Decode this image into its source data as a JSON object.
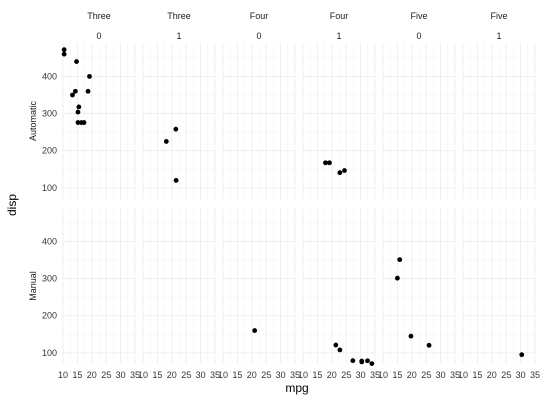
{
  "chart_data": {
    "type": "scatter",
    "xlabel": "mpg",
    "ylabel": "disp",
    "xlim": [
      10,
      35
    ],
    "ylim": [
      70,
      490
    ],
    "x_ticks": [
      10,
      15,
      20,
      25,
      30,
      35
    ],
    "y_ticks": [
      100,
      200,
      300,
      400
    ],
    "grid": true,
    "column_facets": [
      {
        "top": "Three",
        "bottom": "0"
      },
      {
        "top": "Three",
        "bottom": "1"
      },
      {
        "top": "Four",
        "bottom": "0"
      },
      {
        "top": "Four",
        "bottom": "1"
      },
      {
        "top": "Five",
        "bottom": "0"
      },
      {
        "top": "Five",
        "bottom": "1"
      }
    ],
    "row_facets": [
      "Automatic",
      "Manual"
    ],
    "panels": [
      {
        "row": 0,
        "col": 0,
        "points": [
          {
            "x": 10.4,
            "y": 472
          },
          {
            "x": 10.4,
            "y": 460
          },
          {
            "x": 14.7,
            "y": 440
          },
          {
            "x": 19.2,
            "y": 400
          },
          {
            "x": 14.3,
            "y": 360
          },
          {
            "x": 18.7,
            "y": 360
          },
          {
            "x": 13.3,
            "y": 350
          },
          {
            "x": 15.5,
            "y": 318
          },
          {
            "x": 15.2,
            "y": 304
          },
          {
            "x": 15.2,
            "y": 275.8
          },
          {
            "x": 16.4,
            "y": 275.8
          },
          {
            "x": 17.3,
            "y": 275.8
          }
        ]
      },
      {
        "row": 0,
        "col": 1,
        "points": [
          {
            "x": 21.4,
            "y": 258
          },
          {
            "x": 18.1,
            "y": 225
          },
          {
            "x": 21.5,
            "y": 120.1
          }
        ]
      },
      {
        "row": 0,
        "col": 2,
        "points": []
      },
      {
        "row": 0,
        "col": 3,
        "points": [
          {
            "x": 17.8,
            "y": 167.6
          },
          {
            "x": 19.2,
            "y": 167.6
          },
          {
            "x": 24.4,
            "y": 146.7
          },
          {
            "x": 22.8,
            "y": 140.8
          }
        ]
      },
      {
        "row": 0,
        "col": 4,
        "points": []
      },
      {
        "row": 0,
        "col": 5,
        "points": []
      },
      {
        "row": 1,
        "col": 0,
        "points": []
      },
      {
        "row": 1,
        "col": 1,
        "points": []
      },
      {
        "row": 1,
        "col": 2,
        "points": [
          {
            "x": 21.0,
            "y": 160
          }
        ]
      },
      {
        "row": 1,
        "col": 3,
        "points": [
          {
            "x": 21.4,
            "y": 121
          },
          {
            "x": 22.8,
            "y": 108
          },
          {
            "x": 27.3,
            "y": 79
          },
          {
            "x": 30.4,
            "y": 75.7
          },
          {
            "x": 32.4,
            "y": 78.7
          },
          {
            "x": 33.9,
            "y": 71.1
          },
          {
            "x": 30.4,
            "y": 78
          }
        ]
      },
      {
        "row": 1,
        "col": 4,
        "points": [
          {
            "x": 15.8,
            "y": 351
          },
          {
            "x": 15.0,
            "y": 301
          },
          {
            "x": 19.7,
            "y": 145
          },
          {
            "x": 26.0,
            "y": 120.3
          }
        ]
      },
      {
        "row": 1,
        "col": 5,
        "points": [
          {
            "x": 30.4,
            "y": 95.1
          }
        ]
      }
    ]
  }
}
